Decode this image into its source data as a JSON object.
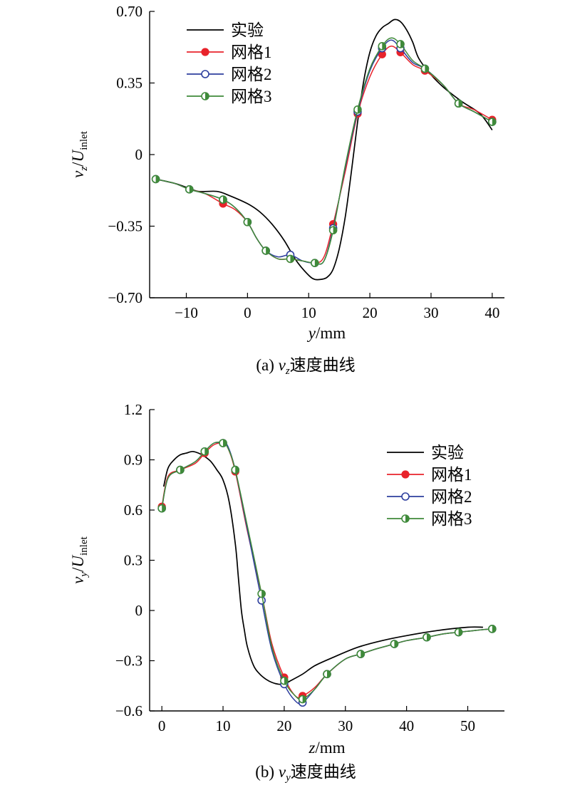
{
  "chart_data": [
    {
      "type": "line",
      "caption": {
        "label": "(a)",
        "var": "v",
        "sub": "z",
        "text": "速度曲线"
      },
      "xlabel": {
        "var": "y",
        "unit": "/mm"
      },
      "ylabel": {
        "var": "v",
        "sub": "z",
        "den": "U",
        "den_sub": "inlet"
      },
      "xlim": [
        -16,
        42
      ],
      "ylim": [
        -0.7,
        0.7
      ],
      "xticks": [
        "−10",
        "0",
        "10",
        "20",
        "30",
        "40"
      ],
      "xtick_values": [
        -10,
        0,
        10,
        20,
        30,
        40
      ],
      "yticks": [
        "−0.70",
        "−0.35",
        "0",
        "0.35",
        "0.70"
      ],
      "ytick_values": [
        -0.7,
        -0.35,
        0,
        0.35,
        0.7
      ],
      "legend_position": "top-left",
      "series": [
        {
          "name": "实验",
          "color": "#000000",
          "marker": "none",
          "x": [
            -15,
            -12,
            -10,
            -8,
            -5,
            -3,
            0,
            2,
            4,
            6,
            8,
            10,
            11,
            12,
            13,
            14,
            15,
            16,
            17,
            18,
            19,
            20,
            21,
            22,
            23,
            24,
            25,
            26,
            27,
            28,
            30,
            32,
            35,
            38,
            40
          ],
          "y": [
            -0.12,
            -0.14,
            -0.16,
            -0.18,
            -0.18,
            -0.2,
            -0.24,
            -0.28,
            -0.34,
            -0.42,
            -0.52,
            -0.59,
            -0.61,
            -0.61,
            -0.6,
            -0.56,
            -0.46,
            -0.3,
            -0.08,
            0.16,
            0.36,
            0.5,
            0.58,
            0.62,
            0.64,
            0.66,
            0.65,
            0.61,
            0.55,
            0.47,
            0.39,
            0.33,
            0.26,
            0.2,
            0.12
          ]
        },
        {
          "name": "网格1",
          "color": "#e8232b",
          "marker": "filled",
          "x": [
            -15,
            -12,
            -9.5,
            -7,
            -4,
            -2,
            0,
            1.5,
            3,
            5,
            7,
            9,
            11,
            12.5,
            14,
            16,
            18,
            20,
            22,
            23.5,
            25,
            27,
            29,
            32,
            34.5,
            37,
            40
          ],
          "y": [
            -0.12,
            -0.14,
            -0.17,
            -0.19,
            -0.24,
            -0.27,
            -0.33,
            -0.41,
            -0.47,
            -0.51,
            -0.51,
            -0.52,
            -0.53,
            -0.5,
            -0.34,
            -0.08,
            0.2,
            0.38,
            0.49,
            0.53,
            0.5,
            0.44,
            0.41,
            0.34,
            0.25,
            0.22,
            0.17
          ]
        },
        {
          "name": "网格2",
          "color": "#2e3f9e",
          "marker": "open",
          "x": [
            -15,
            -12,
            -9.5,
            -7,
            -4,
            -2,
            0,
            1.5,
            3,
            5,
            7,
            9,
            11,
            12.5,
            14,
            16,
            18,
            20,
            22,
            23.5,
            25,
            27,
            29,
            32,
            34.5,
            37,
            40
          ],
          "y": [
            -0.12,
            -0.14,
            -0.17,
            -0.19,
            -0.22,
            -0.26,
            -0.33,
            -0.41,
            -0.47,
            -0.5,
            -0.49,
            -0.52,
            -0.53,
            -0.52,
            -0.36,
            -0.06,
            0.21,
            0.41,
            0.52,
            0.56,
            0.52,
            0.45,
            0.42,
            0.34,
            0.25,
            0.21,
            0.16
          ]
        },
        {
          "name": "网格3",
          "color": "#3f8a3a",
          "marker": "half",
          "x": [
            -15,
            -12,
            -9.5,
            -7,
            -4,
            -2,
            0,
            1.5,
            3,
            5,
            7,
            9,
            11,
            12.5,
            14,
            16,
            18,
            20,
            22,
            23.5,
            25,
            27,
            29,
            32,
            34.5,
            37,
            40
          ],
          "y": [
            -0.12,
            -0.14,
            -0.17,
            -0.19,
            -0.22,
            -0.26,
            -0.33,
            -0.41,
            -0.47,
            -0.51,
            -0.51,
            -0.52,
            -0.53,
            -0.52,
            -0.37,
            -0.05,
            0.22,
            0.42,
            0.53,
            0.57,
            0.54,
            0.46,
            0.42,
            0.34,
            0.25,
            0.21,
            0.16
          ]
        }
      ]
    },
    {
      "type": "line",
      "caption": {
        "label": "(b)",
        "var": "v",
        "sub": "y",
        "text": "速度曲线"
      },
      "xlabel": {
        "var": "z",
        "unit": "/mm"
      },
      "ylabel": {
        "var": "v",
        "sub": "y",
        "den": "U",
        "den_sub": "inlet"
      },
      "xlim": [
        -2,
        56
      ],
      "ylim": [
        -0.6,
        1.2
      ],
      "xticks": [
        "0",
        "10",
        "20",
        "30",
        "40",
        "50"
      ],
      "xtick_values": [
        0,
        10,
        20,
        30,
        40,
        50
      ],
      "yticks": [
        "−0.6",
        "−0.3",
        "0",
        "0.3",
        "0.6",
        "0.9",
        "1.2"
      ],
      "ytick_values": [
        -0.6,
        -0.3,
        0,
        0.3,
        0.6,
        0.9,
        1.2
      ],
      "legend_position": "center-right",
      "series": [
        {
          "name": "实验",
          "color": "#000000",
          "marker": "none",
          "x": [
            0.3,
            1,
            2,
            3,
            4,
            5,
            6,
            7,
            8,
            9,
            10,
            11,
            12,
            12.5,
            13,
            13.5,
            14,
            15,
            16,
            17,
            18,
            19,
            20,
            21,
            23,
            25,
            28,
            32,
            36,
            40,
            45,
            50,
            52.5
          ],
          "y": [
            0.74,
            0.85,
            0.9,
            0.93,
            0.94,
            0.95,
            0.94,
            0.92,
            0.89,
            0.84,
            0.78,
            0.65,
            0.4,
            0.2,
            0.0,
            -0.12,
            -0.22,
            -0.33,
            -0.38,
            -0.41,
            -0.43,
            -0.44,
            -0.44,
            -0.42,
            -0.38,
            -0.33,
            -0.28,
            -0.22,
            -0.18,
            -0.15,
            -0.12,
            -0.1,
            -0.1
          ]
        },
        {
          "name": "网格1",
          "color": "#e8232b",
          "marker": "filled",
          "x": [
            0,
            1,
            3,
            5.5,
            7,
            8.5,
            10,
            10.8,
            12,
            14,
            16.3,
            18,
            20,
            21.8,
            23,
            25,
            27,
            30,
            32.5,
            35,
            38,
            40,
            43.3,
            46,
            48.5,
            51,
            54
          ],
          "y": [
            0.62,
            0.8,
            0.84,
            0.88,
            0.94,
            0.99,
            1.0,
            0.97,
            0.83,
            0.47,
            0.1,
            -0.2,
            -0.4,
            -0.51,
            -0.51,
            -0.46,
            -0.38,
            -0.29,
            -0.26,
            -0.23,
            -0.2,
            -0.18,
            -0.16,
            -0.14,
            -0.13,
            -0.12,
            -0.11
          ]
        },
        {
          "name": "网格2",
          "color": "#2e3f9e",
          "marker": "open",
          "x": [
            0,
            1,
            3,
            5.5,
            7,
            8.5,
            10,
            10.8,
            12,
            14,
            16.3,
            18,
            20,
            21.8,
            23,
            25,
            27,
            30,
            32.5,
            35,
            38,
            40,
            43.3,
            46,
            48.5,
            51,
            54
          ],
          "y": [
            0.61,
            0.79,
            0.84,
            0.89,
            0.95,
            1.0,
            1.0,
            0.98,
            0.84,
            0.48,
            0.06,
            -0.24,
            -0.44,
            -0.54,
            -0.55,
            -0.47,
            -0.38,
            -0.29,
            -0.26,
            -0.23,
            -0.2,
            -0.18,
            -0.16,
            -0.14,
            -0.13,
            -0.12,
            -0.11
          ]
        },
        {
          "name": "网格3",
          "color": "#3f8a3a",
          "marker": "half",
          "x": [
            0,
            1,
            3,
            5.5,
            7,
            8.5,
            10,
            10.8,
            12,
            14,
            16.3,
            18,
            20,
            21.8,
            23,
            25,
            27,
            30,
            32.5,
            35,
            38,
            40,
            43.3,
            46,
            48.5,
            51,
            54
          ],
          "y": [
            0.61,
            0.79,
            0.84,
            0.89,
            0.95,
            1.0,
            1.0,
            0.97,
            0.84,
            0.5,
            0.1,
            -0.22,
            -0.42,
            -0.51,
            -0.53,
            -0.47,
            -0.38,
            -0.29,
            -0.26,
            -0.23,
            -0.2,
            -0.18,
            -0.16,
            -0.14,
            -0.13,
            -0.12,
            -0.11
          ]
        }
      ]
    }
  ]
}
